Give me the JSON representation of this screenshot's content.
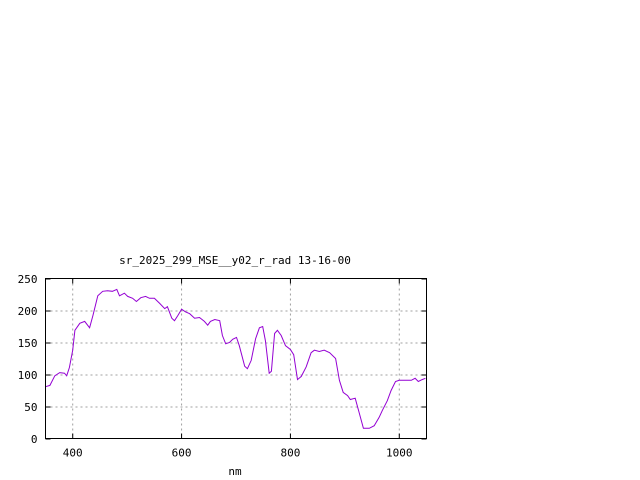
{
  "chart_data": {
    "type": "line",
    "title": "sr_2025_299_MSE__y02_r_rad 13-16-00",
    "xlabel": "nm",
    "ylabel": "",
    "xlim": [
      350,
      1050
    ],
    "ylim": [
      0,
      250
    ],
    "xticks": [
      400,
      600,
      800,
      1000
    ],
    "yticks": [
      0,
      50,
      100,
      150,
      200,
      250
    ],
    "grid": true,
    "legend": "none",
    "line_color": "#9400d3",
    "series": [
      {
        "x": [
          350,
          358,
          367,
          376,
          385,
          389,
          394,
          400,
          404,
          413,
          422,
          431,
          437,
          446,
          455,
          464,
          473,
          481,
          486,
          495,
          501,
          510,
          517,
          525,
          534,
          541,
          550,
          560,
          569,
          574,
          582,
          587,
          593,
          600,
          607,
          615,
          624,
          633,
          642,
          648,
          653,
          661,
          670,
          675,
          681,
          688,
          694,
          701,
          706,
          716,
          721,
          728,
          736,
          743,
          749,
          754,
          761,
          765,
          771,
          776,
          783,
          791,
          800,
          806,
          813,
          820,
          829,
          838,
          844,
          853,
          862,
          872,
          883,
          890,
          897,
          905,
          910,
          919,
          925,
          934,
          945,
          954,
          963,
          969,
          978,
          985,
          993,
          1000,
          1011,
          1022,
          1029,
          1035,
          1042,
          1048
        ],
        "y": [
          81,
          83,
          98,
          103,
          102,
          98,
          111,
          138,
          169,
          180,
          183,
          173,
          192,
          223,
          230,
          231,
          230,
          233,
          223,
          227,
          222,
          219,
          214,
          220,
          222,
          219,
          219,
          211,
          203,
          206,
          188,
          184,
          192,
          202,
          198,
          195,
          188,
          189,
          183,
          177,
          183,
          186,
          184,
          161,
          148,
          150,
          155,
          158,
          145,
          113,
          109,
          122,
          156,
          173,
          175,
          153,
          102,
          105,
          164,
          169,
          161,
          145,
          139,
          131,
          92,
          97,
          112,
          134,
          138,
          136,
          138,
          134,
          125,
          91,
          72,
          67,
          61,
          63,
          44,
          16,
          16,
          20,
          33,
          44,
          59,
          75,
          89,
          91,
          91,
          91,
          94,
          89,
          92,
          94
        ]
      }
    ]
  }
}
